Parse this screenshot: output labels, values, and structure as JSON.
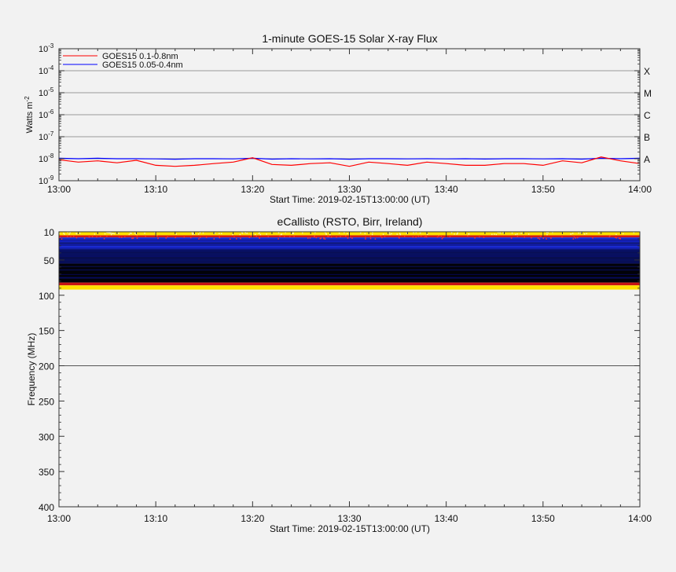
{
  "chart_data": [
    {
      "type": "line",
      "title": "1-minute GOES-15 Solar X-ray Flux",
      "xlabel": "Start Time: 2019-02-15T13:00:00 (UT)",
      "ylabel": "Watts m",
      "ylabel_superscript": "-2",
      "y_scale": "log",
      "ylim": [
        1e-09,
        0.001
      ],
      "x_tick_labels": [
        "13:00",
        "13:10",
        "13:20",
        "13:30",
        "13:40",
        "13:50",
        "14:00"
      ],
      "y_tick_labels": [
        {
          "base": "10",
          "exp": "-9",
          "value": 1e-09
        },
        {
          "base": "10",
          "exp": "-8",
          "value": 1e-08
        },
        {
          "base": "10",
          "exp": "-7",
          "value": 1e-07
        },
        {
          "base": "10",
          "exp": "-6",
          "value": 1e-06
        },
        {
          "base": "10",
          "exp": "-5",
          "value": 1e-05
        },
        {
          "base": "10",
          "exp": "-4",
          "value": 0.0001
        },
        {
          "base": "10",
          "exp": "-3",
          "value": 0.001
        }
      ],
      "flare_classes": [
        {
          "label": "A",
          "value": 1e-08
        },
        {
          "label": "B",
          "value": 1e-07
        },
        {
          "label": "C",
          "value": 1e-06
        },
        {
          "label": "M",
          "value": 1e-05
        },
        {
          "label": "X",
          "value": 0.0001
        }
      ],
      "legend_position": "top-left",
      "x_minutes": [
        0,
        2,
        4,
        6,
        8,
        10,
        12,
        14,
        16,
        18,
        20,
        22,
        24,
        26,
        28,
        30,
        32,
        34,
        36,
        38,
        40,
        42,
        44,
        46,
        48,
        50,
        52,
        54,
        56,
        58,
        60
      ],
      "series": [
        {
          "name": "GOES15 0.1-0.8nm",
          "color": "#ff0000",
          "values": [
            9e-09,
            7e-09,
            8e-09,
            6.5e-09,
            8.5e-09,
            5e-09,
            4.5e-09,
            5e-09,
            6e-09,
            7e-09,
            1.1e-08,
            5.5e-09,
            5e-09,
            6e-09,
            6.5e-09,
            4.5e-09,
            7e-09,
            6e-09,
            5e-09,
            7e-09,
            6e-09,
            5e-09,
            5e-09,
            6e-09,
            6e-09,
            5e-09,
            8e-09,
            6.5e-09,
            1.2e-08,
            8e-09,
            6e-09
          ]
        },
        {
          "name": "GOES15 0.05-0.4nm",
          "color": "#0000ff",
          "values": [
            1.05e-08,
            1e-08,
            1.05e-08,
            1e-08,
            1e-08,
            9.8e-09,
            9.5e-09,
            1e-08,
            1e-08,
            9.8e-09,
            1.05e-08,
            9.6e-09,
            1e-08,
            9.8e-09,
            1e-08,
            9.5e-09,
            1e-08,
            1e-08,
            9.8e-09,
            1e-08,
            9.8e-09,
            1e-08,
            9.7e-09,
            1e-08,
            1e-08,
            9.8e-09,
            1e-08,
            9.6e-09,
            1.05e-08,
            1e-08,
            1.05e-08
          ]
        }
      ]
    },
    {
      "type": "heatmap",
      "title": "eCallisto (RSTO, Birr, Ireland)",
      "xlabel": "Start Time: 2019-02-15T13:00:00 (UT)",
      "ylabel": "Frequency (MHz)",
      "y_reversed": true,
      "ylim": [
        10,
        400
      ],
      "y_ticks": [
        10,
        50,
        100,
        150,
        200,
        250,
        300,
        350,
        400
      ],
      "x_tick_labels": [
        "13:00",
        "13:10",
        "13:20",
        "13:30",
        "13:40",
        "13:50",
        "14:00"
      ],
      "frequency_bands": [
        {
          "from_mhz": 10,
          "to_mhz": 15,
          "level": "high",
          "color": "#ffe000"
        },
        {
          "from_mhz": 15,
          "to_mhz": 18,
          "level": "elevated",
          "color": "#d01818"
        },
        {
          "from_mhz": 18,
          "to_mhz": 35,
          "level": "moderate",
          "color": "#1a2ad0"
        },
        {
          "from_mhz": 35,
          "to_mhz": 55,
          "level": "low",
          "color": "#081060"
        },
        {
          "from_mhz": 55,
          "to_mhz": 82,
          "level": "background",
          "color": "#020208"
        },
        {
          "from_mhz": 82,
          "to_mhz": 86,
          "level": "elevated",
          "color": "#c81414"
        },
        {
          "from_mhz": 86,
          "to_mhz": 92,
          "level": "high",
          "color": "#ffe000"
        }
      ]
    }
  ]
}
